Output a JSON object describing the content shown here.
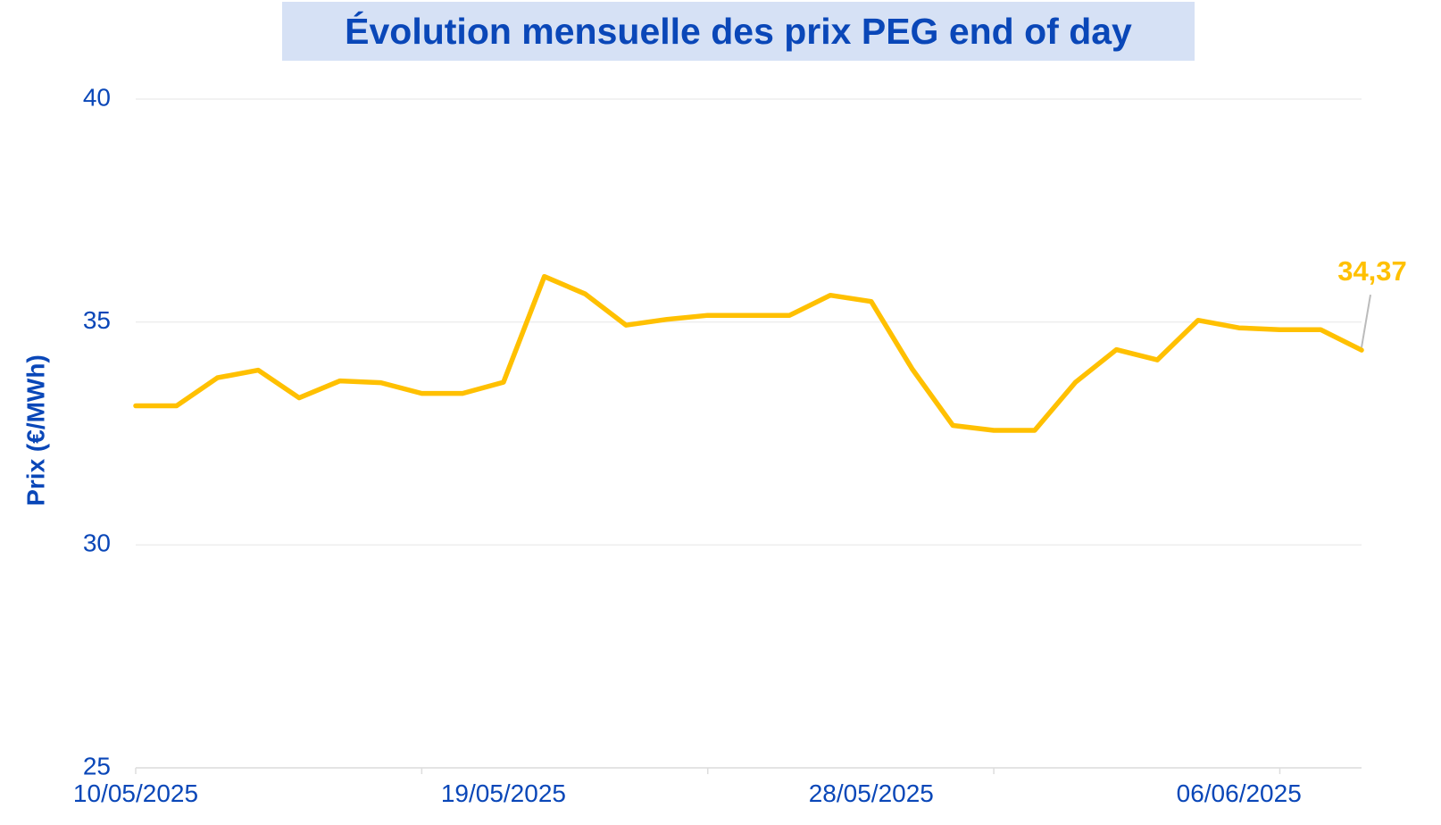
{
  "chart_data": {
    "type": "line",
    "title": "Évolution mensuelle des prix PEG end of day",
    "ylabel": "Prix (€/MWh)",
    "xlabel": "",
    "ylim": [
      25,
      40
    ],
    "yticks": [
      25,
      30,
      35,
      40
    ],
    "xticks": [
      "10/05/2025",
      "19/05/2025",
      "28/05/2025",
      "06/06/2025"
    ],
    "grid": "horizontal",
    "legend": "none",
    "colors": {
      "line": "#ffc000",
      "text": "#0a47b8",
      "title_bg": "#d6e1f5"
    },
    "series": [
      {
        "x": [
          "10/05/2025",
          "11/05/2025",
          "12/05/2025",
          "13/05/2025",
          "14/05/2025",
          "15/05/2025",
          "16/05/2025",
          "17/05/2025",
          "18/05/2025",
          "19/05/2025",
          "20/05/2025",
          "21/05/2025",
          "22/05/2025",
          "23/05/2025",
          "24/05/2025",
          "25/05/2025",
          "26/05/2025",
          "27/05/2025",
          "28/05/2025",
          "29/05/2025",
          "30/05/2025",
          "31/05/2025",
          "01/06/2025",
          "02/06/2025",
          "03/06/2025",
          "04/06/2025",
          "05/06/2025",
          "06/06/2025",
          "07/06/2025",
          "08/06/2025",
          "09/06/2025"
        ],
        "values": [
          33.12,
          33.12,
          33.75,
          33.92,
          33.3,
          33.68,
          33.64,
          33.4,
          33.4,
          33.65,
          36.02,
          35.63,
          34.93,
          35.06,
          35.15,
          35.15,
          35.15,
          35.6,
          35.46,
          33.95,
          32.68,
          32.57,
          32.57,
          33.65,
          34.38,
          34.15,
          35.04,
          34.87,
          34.83,
          34.83,
          34.37
        ]
      }
    ],
    "annotations": [
      {
        "text": "34,37"
      }
    ]
  }
}
